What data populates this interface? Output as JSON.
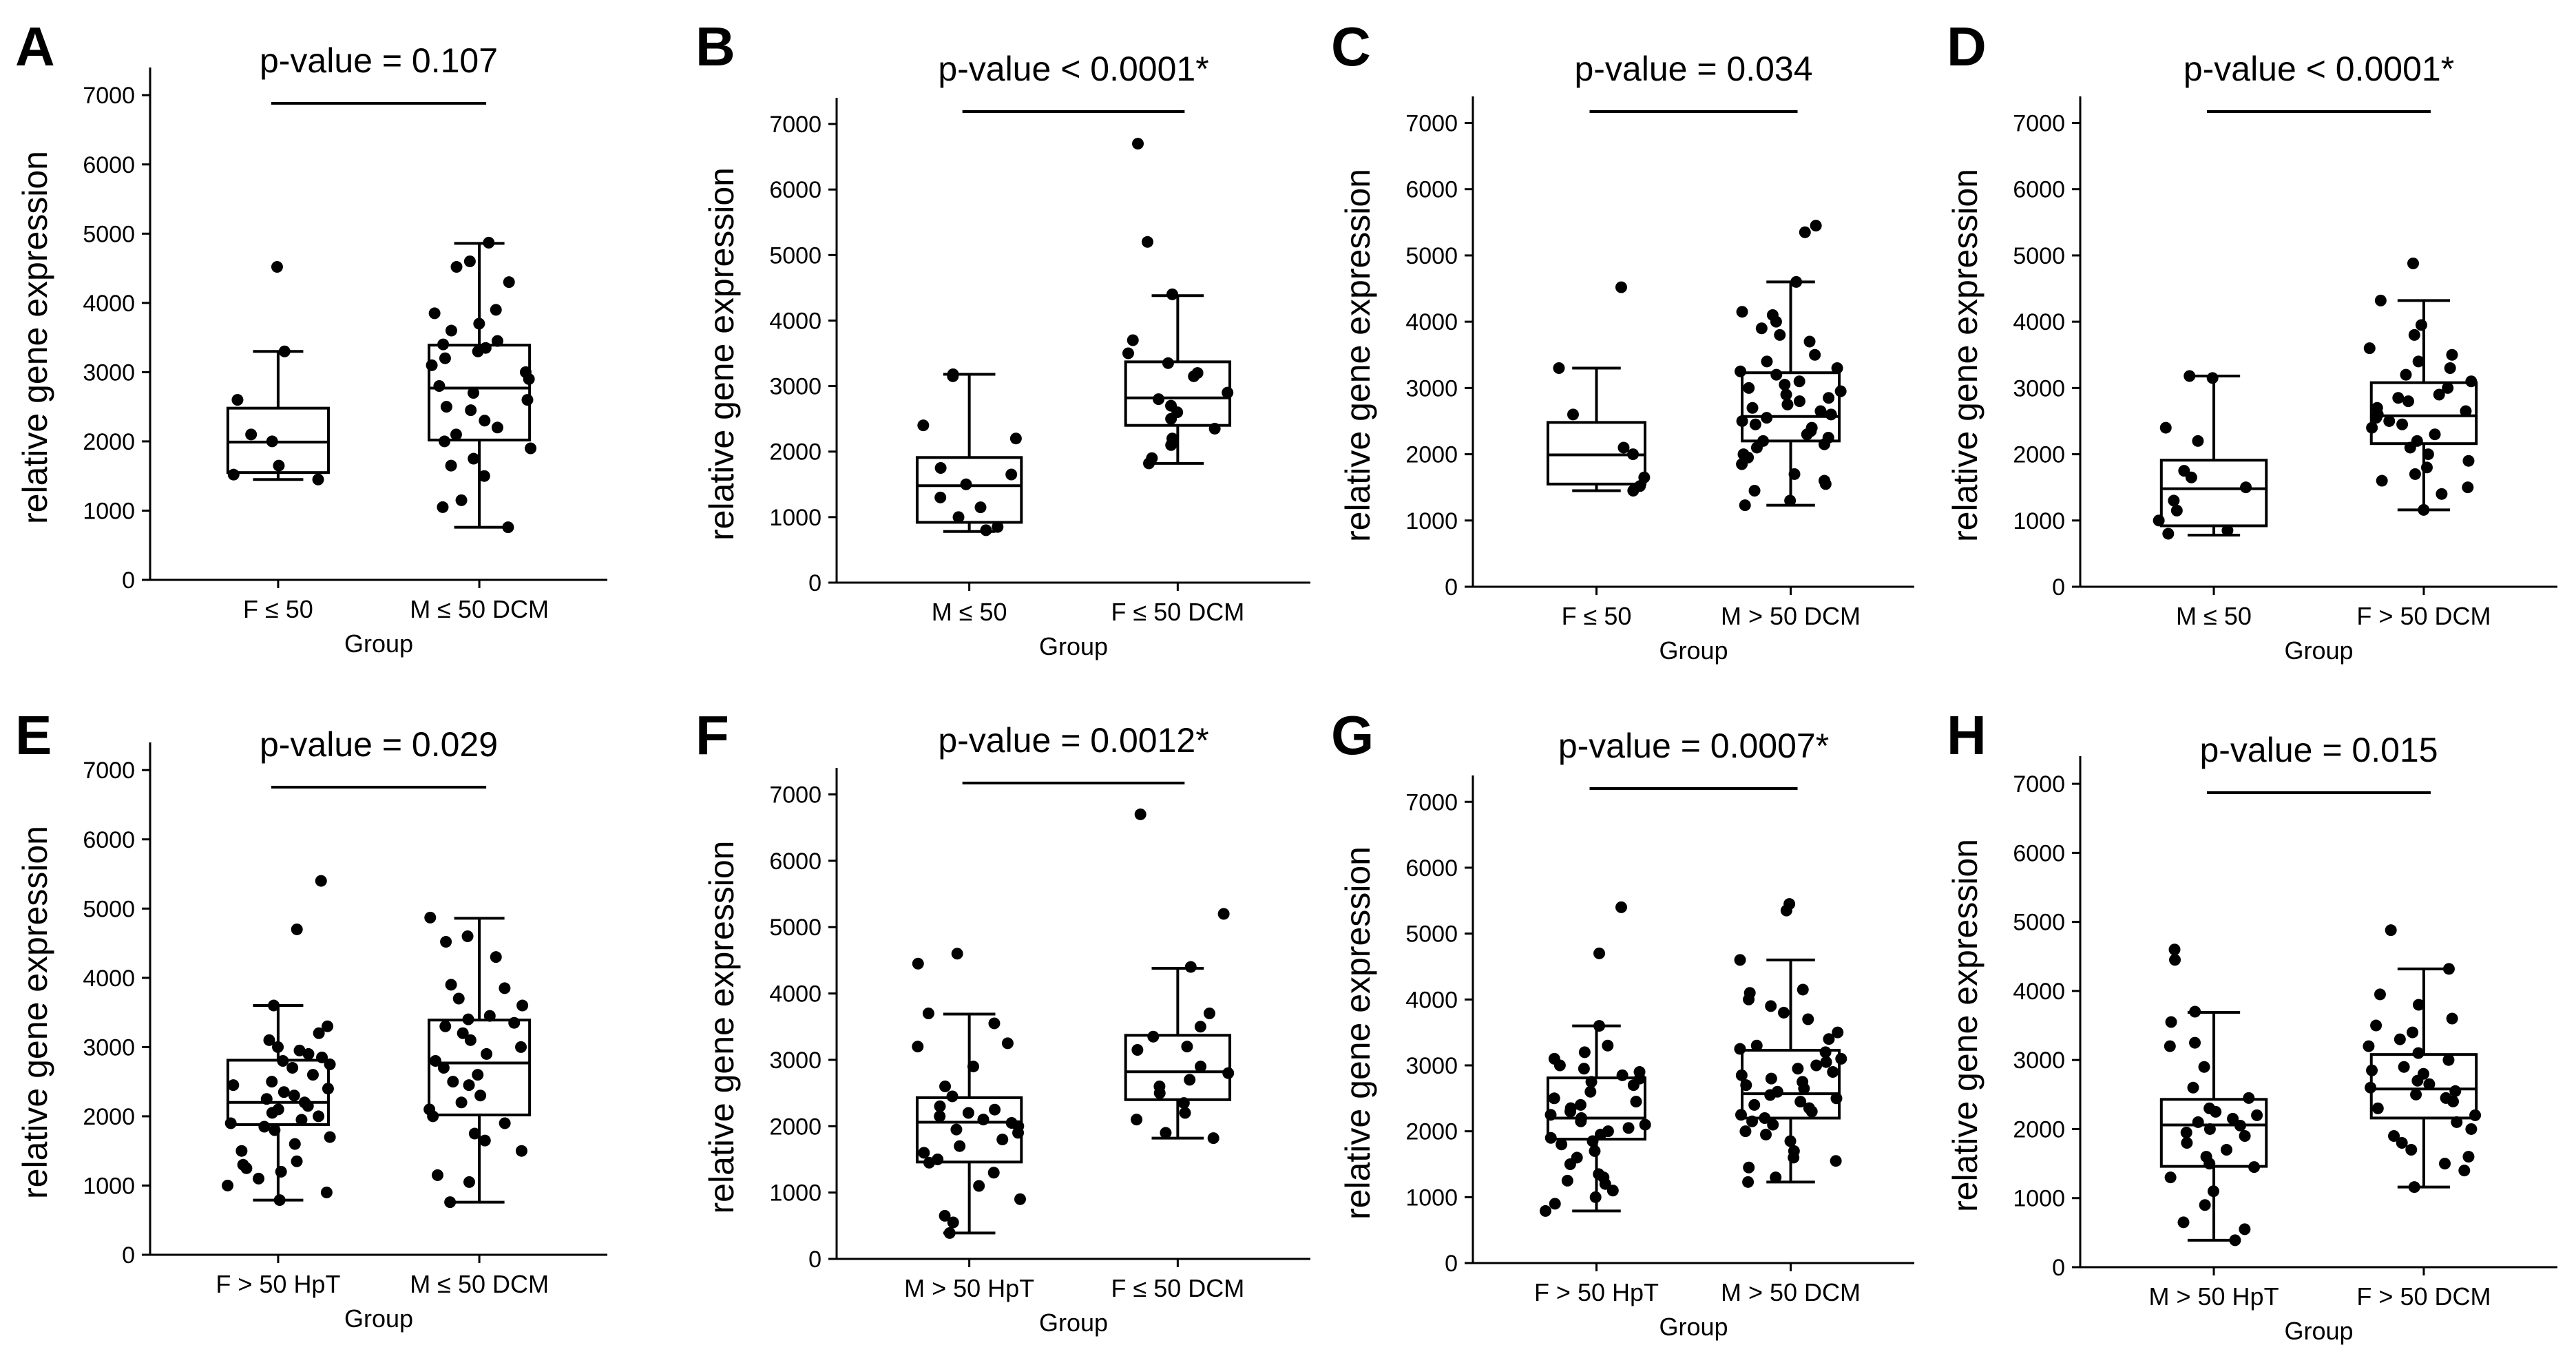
{
  "figure": {
    "description_colors": {
      "ink": "#000000",
      "background": "#ffffff"
    },
    "xlabel": "Group",
    "ylabel": "relative gene expression",
    "yticks": [
      0,
      1000,
      2000,
      3000,
      4000,
      5000,
      6000,
      7000
    ],
    "ylim": [
      0,
      7400
    ]
  },
  "chart_data": [
    {
      "type": "box",
      "panel": "A",
      "title": "p-value = 0.107",
      "xlabel": "Group",
      "ylabel": "relative gene expression",
      "ylim": [
        0,
        7400
      ],
      "categories": [
        "F ≤ 50",
        "M ≤ 50 DCM"
      ],
      "boxes": [
        {
          "whislo": 1450,
          "q1": 1550,
          "med": 1990,
          "q3": 2480,
          "whishi": 3300
        },
        {
          "whislo": 760,
          "q1": 2020,
          "med": 2770,
          "q3": 3390,
          "whishi": 4860
        }
      ],
      "points": [
        [
          4520,
          3300,
          2600,
          2100,
          2000,
          1650,
          1520,
          1450
        ],
        [
          4870,
          4600,
          4520,
          4300,
          3900,
          3850,
          3700,
          3600,
          3450,
          3400,
          3350,
          3300,
          3200,
          3100,
          3000,
          2900,
          2800,
          2700,
          2600,
          2500,
          2450,
          2300,
          2200,
          2100,
          2000,
          1900,
          1750,
          1650,
          1500,
          1150,
          1050,
          760
        ]
      ]
    },
    {
      "type": "box",
      "panel": "B",
      "title": "p-value < 0.0001*",
      "xlabel": "Group",
      "ylabel": "relative gene expression",
      "ylim": [
        0,
        7400
      ],
      "categories": [
        "M ≤ 50",
        "F ≤ 50 DCM"
      ],
      "boxes": [
        {
          "whislo": 780,
          "q1": 920,
          "med": 1480,
          "q3": 1910,
          "whishi": 3180
        },
        {
          "whislo": 1820,
          "q1": 2400,
          "med": 2820,
          "q3": 3370,
          "whishi": 4380
        }
      ],
      "points": [
        [
          3180,
          3150,
          2400,
          2200,
          1750,
          1650,
          1500,
          1300,
          1150,
          1000,
          850,
          800
        ],
        [
          6700,
          5200,
          4400,
          3700,
          3500,
          3350,
          3200,
          3150,
          2900,
          2800,
          2700,
          2600,
          2500,
          2350,
          2200,
          2100,
          1900,
          1820
        ]
      ]
    },
    {
      "type": "box",
      "panel": "C",
      "title": "p-value = 0.034",
      "xlabel": "Group",
      "ylabel": "relative gene expression",
      "ylim": [
        0,
        7400
      ],
      "categories": [
        "F ≤ 50",
        "M > 50 DCM"
      ],
      "boxes": [
        {
          "whislo": 1450,
          "q1": 1550,
          "med": 1990,
          "q3": 2480,
          "whishi": 3300
        },
        {
          "whislo": 1230,
          "q1": 2200,
          "med": 2570,
          "q3": 3230,
          "whishi": 4600
        }
      ],
      "points": [
        [
          4520,
          3300,
          2600,
          2100,
          2000,
          1650,
          1520,
          1450
        ],
        [
          5450,
          5350,
          4600,
          4150,
          4100,
          4000,
          3900,
          3800,
          3700,
          3500,
          3400,
          3300,
          3250,
          3200,
          3100,
          3050,
          3000,
          2950,
          2900,
          2850,
          2800,
          2750,
          2700,
          2650,
          2600,
          2550,
          2500,
          2450,
          2400,
          2350,
          2300,
          2250,
          2200,
          2150,
          2100,
          2000,
          1950,
          1850,
          1700,
          1600,
          1550,
          1450,
          1300,
          1230
        ]
      ]
    },
    {
      "type": "box",
      "panel": "D",
      "title": "p-value < 0.0001*",
      "xlabel": "Group",
      "ylabel": "relative gene expression",
      "ylim": [
        0,
        7400
      ],
      "categories": [
        "M ≤ 50",
        "F > 50 DCM"
      ],
      "boxes": [
        {
          "whislo": 780,
          "q1": 920,
          "med": 1480,
          "q3": 1910,
          "whishi": 3180
        },
        {
          "whislo": 1160,
          "q1": 2160,
          "med": 2580,
          "q3": 3080,
          "whishi": 4320
        }
      ],
      "points": [
        [
          3180,
          3150,
          2400,
          2200,
          1750,
          1650,
          1500,
          1300,
          1150,
          1000,
          850,
          800
        ],
        [
          4880,
          4320,
          3950,
          3800,
          3600,
          3500,
          3400,
          3300,
          3200,
          3100,
          3000,
          2900,
          2850,
          2800,
          2700,
          2650,
          2600,
          2550,
          2500,
          2450,
          2400,
          2300,
          2200,
          2100,
          2000,
          1900,
          1800,
          1700,
          1600,
          1500,
          1400,
          1160
        ]
      ]
    },
    {
      "type": "box",
      "panel": "E",
      "title": "p-value = 0.029",
      "xlabel": "Group",
      "ylabel": "relative gene expression",
      "ylim": [
        0,
        7400
      ],
      "categories": [
        "F > 50 HpT",
        "M ≤ 50 DCM"
      ],
      "boxes": [
        {
          "whislo": 790,
          "q1": 1880,
          "med": 2200,
          "q3": 2810,
          "whishi": 3600
        },
        {
          "whislo": 760,
          "q1": 2020,
          "med": 2770,
          "q3": 3390,
          "whishi": 4860
        }
      ],
      "points": [
        [
          5400,
          4700,
          3600,
          3300,
          3200,
          3100,
          3000,
          2950,
          2900,
          2850,
          2800,
          2750,
          2700,
          2600,
          2500,
          2450,
          2400,
          2350,
          2300,
          2250,
          2200,
          2150,
          2100,
          2050,
          2000,
          1950,
          1900,
          1850,
          1800,
          1700,
          1600,
          1500,
          1350,
          1300,
          1250,
          1200,
          1100,
          1000,
          900,
          790
        ],
        [
          4870,
          4600,
          4520,
          4300,
          3900,
          3850,
          3700,
          3600,
          3450,
          3400,
          3350,
          3300,
          3200,
          3100,
          3000,
          2900,
          2800,
          2700,
          2600,
          2500,
          2450,
          2300,
          2200,
          2100,
          2000,
          1900,
          1750,
          1650,
          1500,
          1150,
          1050,
          760
        ]
      ]
    },
    {
      "type": "box",
      "panel": "F",
      "title": "p-value = 0.0012*",
      "xlabel": "Group",
      "ylabel": "relative gene expression",
      "ylim": [
        0,
        7400
      ],
      "categories": [
        "M > 50 HpT",
        "F ≤ 50 DCM"
      ],
      "boxes": [
        {
          "whislo": 390,
          "q1": 1460,
          "med": 2060,
          "q3": 2430,
          "whishi": 3690
        },
        {
          "whislo": 1820,
          "q1": 2400,
          "med": 2820,
          "q3": 3370,
          "whishi": 4380
        }
      ],
      "points": [
        [
          4600,
          4450,
          3700,
          3550,
          3250,
          3200,
          2900,
          2600,
          2450,
          2300,
          2250,
          2200,
          2150,
          2100,
          2050,
          2000,
          1950,
          1900,
          1800,
          1700,
          1600,
          1500,
          1450,
          1300,
          1100,
          900,
          650,
          550,
          390
        ],
        [
          6700,
          5200,
          4400,
          3700,
          3500,
          3350,
          3200,
          3150,
          2900,
          2800,
          2700,
          2600,
          2500,
          2350,
          2200,
          2100,
          1900,
          1820
        ]
      ]
    },
    {
      "type": "box",
      "panel": "G",
      "title": "p-value = 0.0007*",
      "xlabel": "Group",
      "ylabel": "relative gene expression",
      "ylim": [
        0,
        7400
      ],
      "categories": [
        "F > 50 HpT",
        "M > 50 DCM"
      ],
      "boxes": [
        {
          "whislo": 790,
          "q1": 1880,
          "med": 2200,
          "q3": 2810,
          "whishi": 3600
        },
        {
          "whislo": 1230,
          "q1": 2200,
          "med": 2570,
          "q3": 3230,
          "whishi": 4600
        }
      ],
      "points": [
        [
          5400,
          4700,
          3600,
          3300,
          3200,
          3100,
          3000,
          2950,
          2900,
          2850,
          2800,
          2750,
          2700,
          2600,
          2500,
          2450,
          2400,
          2350,
          2300,
          2250,
          2200,
          2150,
          2100,
          2050,
          2000,
          1950,
          1900,
          1850,
          1800,
          1700,
          1600,
          1500,
          1350,
          1300,
          1250,
          1200,
          1100,
          1000,
          900,
          790
        ],
        [
          5450,
          5350,
          4600,
          4150,
          4100,
          4000,
          3900,
          3800,
          3700,
          3500,
          3400,
          3300,
          3250,
          3200,
          3100,
          3050,
          3000,
          2950,
          2900,
          2850,
          2800,
          2750,
          2700,
          2650,
          2600,
          2550,
          2500,
          2450,
          2400,
          2350,
          2300,
          2250,
          2200,
          2150,
          2100,
          2000,
          1950,
          1850,
          1700,
          1600,
          1550,
          1450,
          1300,
          1230
        ]
      ]
    },
    {
      "type": "box",
      "panel": "H",
      "title": "p-value = 0.015",
      "xlabel": "Group",
      "ylabel": "relative gene expression",
      "ylim": [
        0,
        7400
      ],
      "categories": [
        "M > 50 HpT",
        "F > 50 DCM"
      ],
      "boxes": [
        {
          "whislo": 390,
          "q1": 1460,
          "med": 2060,
          "q3": 2430,
          "whishi": 3690
        },
        {
          "whislo": 1160,
          "q1": 2160,
          "med": 2580,
          "q3": 3080,
          "whishi": 4320
        }
      ],
      "points": [
        [
          4600,
          4450,
          3700,
          3550,
          3250,
          3200,
          2900,
          2600,
          2450,
          2300,
          2250,
          2200,
          2150,
          2100,
          2050,
          2000,
          1950,
          1900,
          1800,
          1700,
          1600,
          1500,
          1450,
          1300,
          1100,
          900,
          650,
          550,
          390
        ],
        [
          4880,
          4320,
          3950,
          3800,
          3600,
          3500,
          3400,
          3300,
          3200,
          3100,
          3000,
          2900,
          2850,
          2800,
          2700,
          2650,
          2600,
          2550,
          2500,
          2450,
          2400,
          2300,
          2200,
          2100,
          2000,
          1900,
          1800,
          1700,
          1600,
          1500,
          1400,
          1160
        ]
      ]
    }
  ]
}
